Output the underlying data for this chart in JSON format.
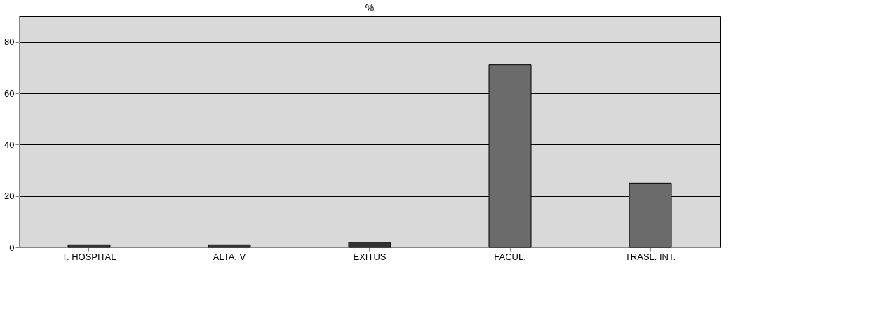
{
  "chart_data": {
    "type": "bar",
    "title": "%",
    "categories": [
      "T. HOSPITAL",
      "ALTA. V",
      "EXITUS",
      "FACUL.",
      "TRASL. INT."
    ],
    "values": [
      1,
      1,
      2,
      71,
      25
    ],
    "colors": [
      "#333333",
      "#333333",
      "#333333",
      "#6b6b6b",
      "#6b6b6b"
    ],
    "ylim": [
      0,
      90
    ],
    "yticks": [
      0,
      20,
      40,
      60,
      80
    ],
    "grid": "y"
  }
}
